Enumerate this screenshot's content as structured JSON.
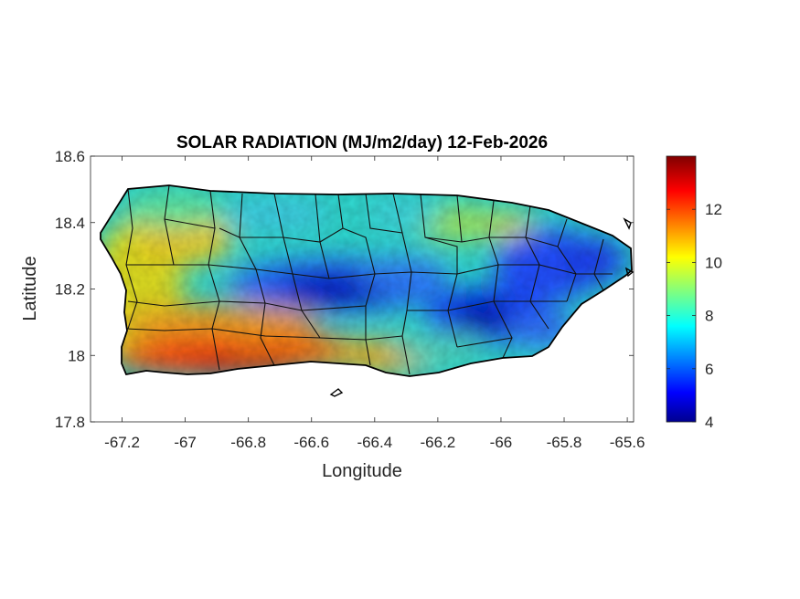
{
  "chart_data": {
    "type": "heatmap",
    "title": "SOLAR RADIATION (MJ/m2/day) 12-Feb-2026",
    "xlabel": "Longitude",
    "ylabel": "Latitude",
    "xlim": [
      -67.3,
      -65.58
    ],
    "ylim": [
      17.8,
      18.6
    ],
    "xticks": [
      -67.2,
      -67,
      -66.8,
      -66.6,
      -66.4,
      -66.2,
      -66,
      -65.8,
      -65.6
    ],
    "xtick_labels": [
      "-67.2",
      "-67",
      "-66.8",
      "-66.6",
      "-66.4",
      "-66.2",
      "-66",
      "-65.8",
      "-65.6"
    ],
    "yticks": [
      17.8,
      18,
      18.2,
      18.4,
      18.6
    ],
    "ytick_labels": [
      "17.8",
      "18",
      "18.2",
      "18.4",
      "18.6"
    ],
    "colorbar": {
      "colormap": "jet",
      "range": [
        4,
        14
      ],
      "ticks": [
        4,
        6,
        8,
        10,
        12
      ],
      "tick_labels": [
        "4",
        "6",
        "8",
        "10",
        "12"
      ]
    },
    "approx_regions": [
      {
        "lon": -66.55,
        "lat": 18.19,
        "value": 4.5
      },
      {
        "lon": -66.05,
        "lat": 18.11,
        "value": 4.5
      },
      {
        "lon": -65.75,
        "lat": 18.28,
        "value": 5.5
      },
      {
        "lon": -66.9,
        "lat": 17.98,
        "value": 12.5
      },
      {
        "lon": -67.05,
        "lat": 18.35,
        "value": 10.5
      },
      {
        "lon": -66.25,
        "lat": 18.43,
        "value": 8.0
      }
    ]
  }
}
